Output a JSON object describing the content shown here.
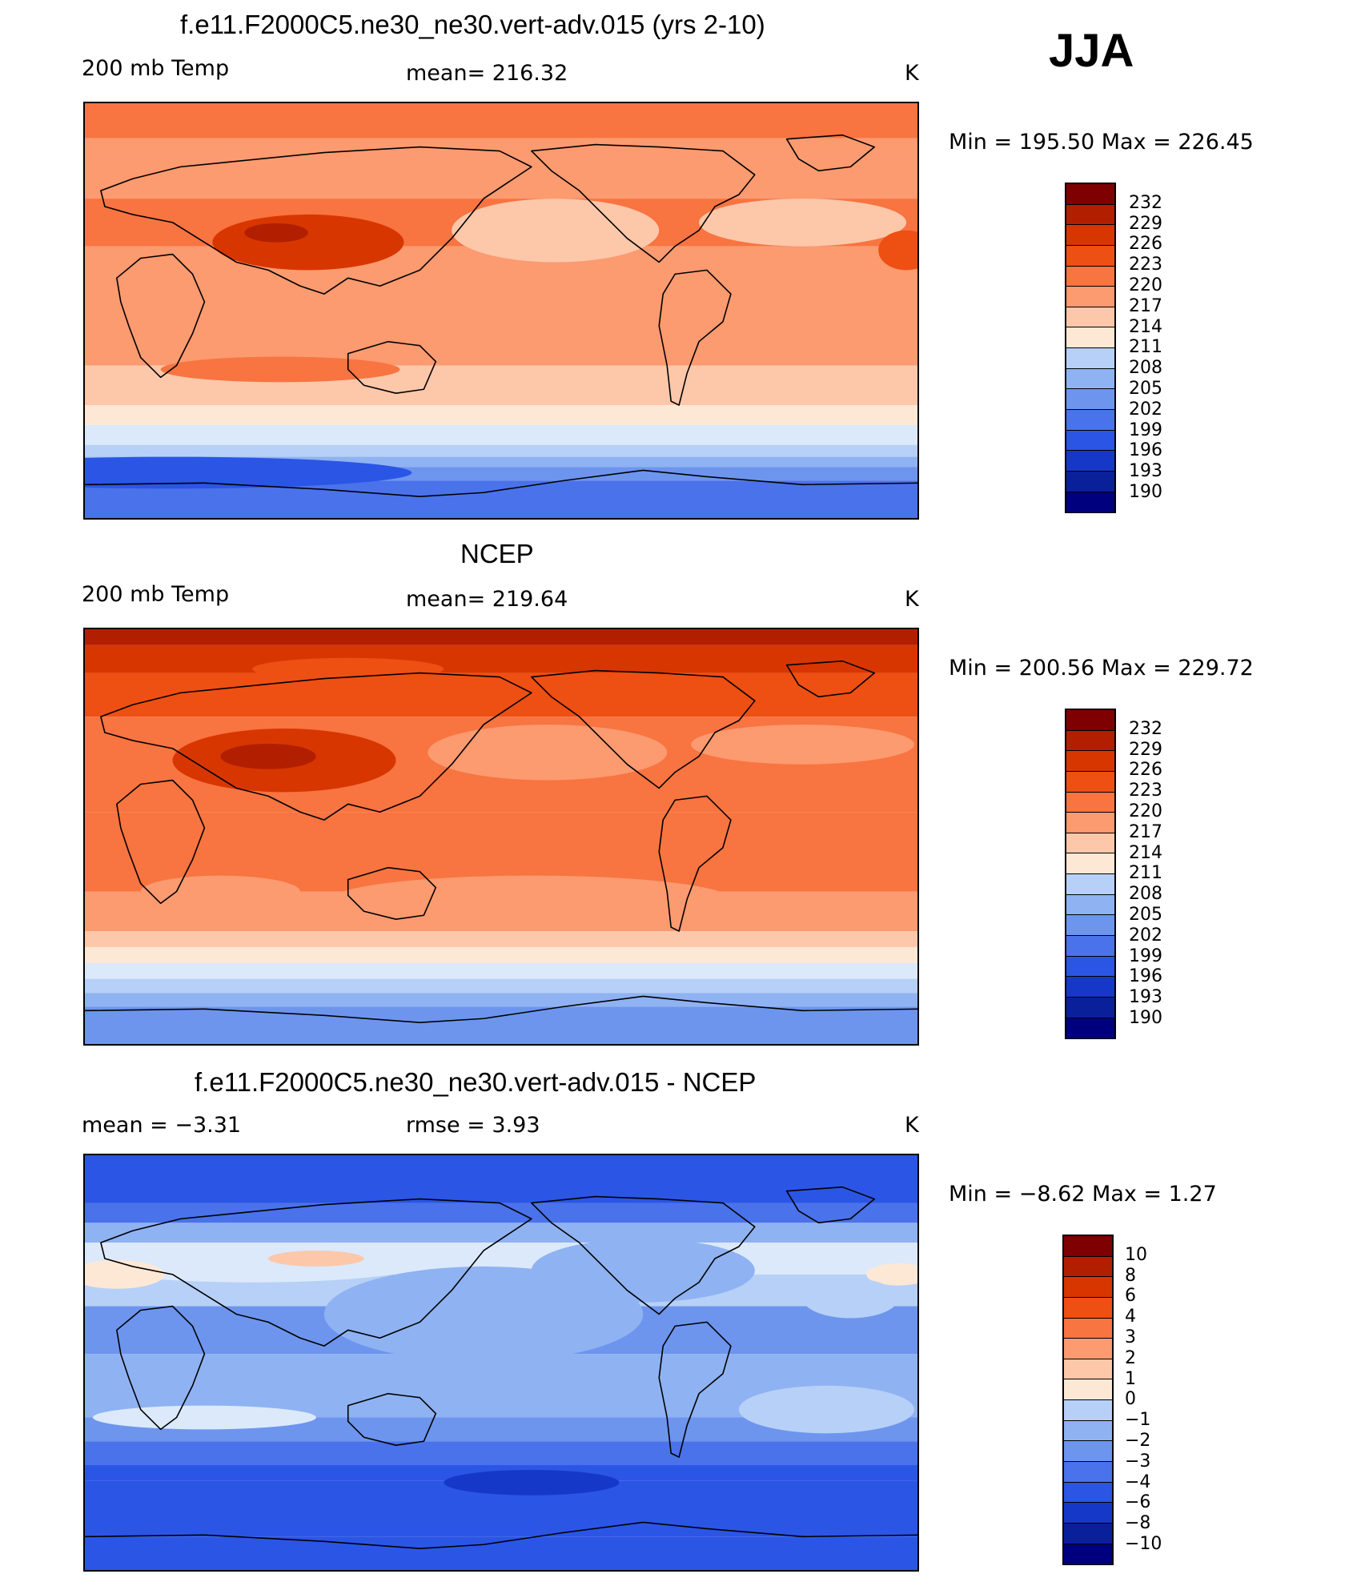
{
  "season": "JJA",
  "panels": [
    {
      "id": "model",
      "title": "f.e11.F2000C5.ne30_ne30.vert-adv.015 (yrs 2-10)",
      "left_label": "200 mb Temp",
      "center_label": "mean=  216.32",
      "units": "K",
      "minmax": "Min  =  195.50  Max  =  226.45",
      "colorbar": "temperature",
      "scheme": "model"
    },
    {
      "id": "obs",
      "title": "NCEP",
      "left_label": "200 mb Temp",
      "center_label": "mean=  219.64",
      "units": "K",
      "minmax": "Min  =  200.56  Max  =  229.72",
      "colorbar": "temperature",
      "scheme": "obs"
    },
    {
      "id": "diff",
      "title": "f.e11.F2000C5.ne30_ne30.vert-adv.015 - NCEP",
      "left_label": "mean  =     −3.31",
      "center_label": "rmse  =     3.93",
      "units": "K",
      "minmax": "Min  =    −8.62  Max  =     1.27",
      "colorbar": "difference",
      "scheme": "diff"
    }
  ],
  "colorbars": {
    "temperature": {
      "labels": [
        "232",
        "229",
        "226",
        "223",
        "220",
        "217",
        "214",
        "211",
        "208",
        "205",
        "202",
        "199",
        "196",
        "193",
        "190"
      ]
    },
    "difference": {
      "labels": [
        "10",
        "8",
        "6",
        "4",
        "3",
        "2",
        "1",
        "0",
        "−1",
        "−2",
        "−3",
        "−4",
        "−6",
        "−8",
        "−10"
      ]
    }
  },
  "palette": [
    "#7f0000",
    "#b21f00",
    "#d83600",
    "#ee4f13",
    "#f87440",
    "#fc9a70",
    "#fdc7aa",
    "#fde8d6",
    "#dbe9fb",
    "#b7d0f7",
    "#8fb2f2",
    "#6d95ee",
    "#4a72ea",
    "#2b55e5",
    "#1638c8",
    "#0a1f9a",
    "#00007f"
  ]
}
